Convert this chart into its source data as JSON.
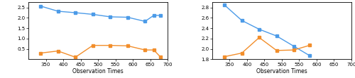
{
  "left": {
    "blue_x": [
      335,
      385,
      435,
      485,
      535,
      585,
      635,
      660,
      680
    ],
    "blue_y": [
      2.57,
      2.32,
      2.25,
      2.17,
      2.05,
      2.03,
      1.83,
      2.12,
      2.12
    ],
    "orange_x": [
      335,
      385,
      435,
      485,
      535,
      585,
      635,
      660,
      680
    ],
    "orange_y": [
      0.3,
      0.4,
      0.1,
      0.67,
      0.67,
      0.65,
      0.45,
      0.45,
      0.1
    ],
    "xlim": [
      300,
      700
    ],
    "ylim": [
      0.0,
      2.75
    ],
    "yticks": [
      0.5,
      1.0,
      1.5,
      2.0,
      2.5
    ],
    "xticks": [
      350,
      400,
      450,
      500,
      550,
      600,
      650,
      700
    ],
    "xlabel": "Observation Times"
  },
  "right": {
    "blue_x": [
      335,
      385,
      435,
      485,
      535,
      580
    ],
    "blue_y": [
      2.85,
      2.55,
      2.38,
      2.25,
      2.05,
      1.87
    ],
    "orange_x": [
      335,
      385,
      435,
      485,
      535,
      580
    ],
    "orange_y": [
      1.85,
      1.92,
      2.22,
      1.97,
      1.98,
      2.07
    ],
    "xlim": [
      300,
      700
    ],
    "ylim": [
      1.8,
      2.9
    ],
    "yticks": [
      1.8,
      2.0,
      2.2,
      2.4,
      2.6,
      2.8
    ],
    "xticks": [
      350,
      400,
      450,
      500,
      550,
      600,
      650,
      700
    ],
    "xlabel": "Observation Times"
  },
  "blue_color": "#4C9BE8",
  "orange_color": "#F28E2B",
  "marker": "s",
  "markersize": 2.5,
  "linewidth": 1.0,
  "tick_fontsize": 5,
  "label_fontsize": 5.5,
  "spine_linewidth": 0.6
}
